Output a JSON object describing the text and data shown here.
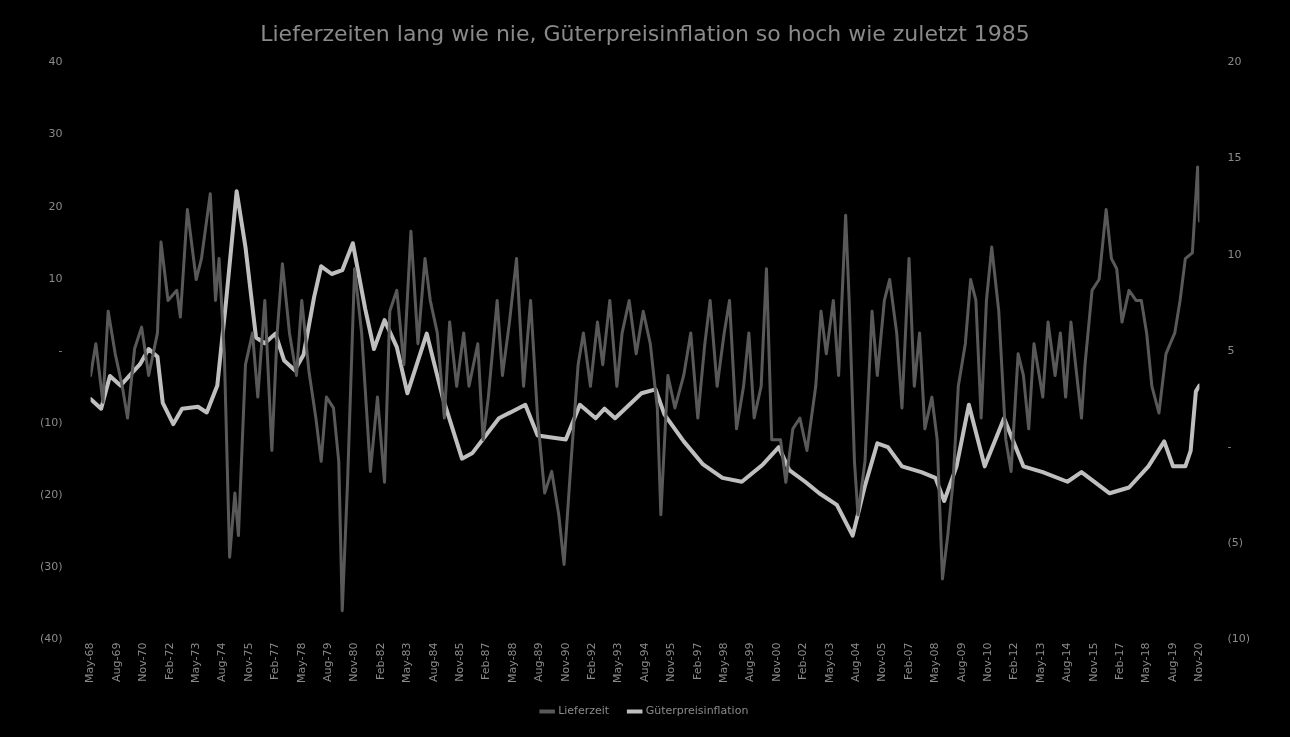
{
  "chart_data": {
    "type": "line",
    "title": "Lieferzeiten lang wie nie, Güterpreisinflation so hoch wie zuletzt 1985",
    "legend": "bottom",
    "marker": "none",
    "grid": false,
    "xlim": [
      "1968-05",
      "2020-11"
    ],
    "xticks": [
      {
        "value": "1968-05",
        "label": "May-68"
      },
      {
        "value": "1969-08",
        "label": "Aug-69"
      },
      {
        "value": "1970-11",
        "label": "Nov-70"
      },
      {
        "value": "1972-02",
        "label": "Feb-72"
      },
      {
        "value": "1973-05",
        "label": "May-73"
      },
      {
        "value": "1974-08",
        "label": "Aug-74"
      },
      {
        "value": "1975-11",
        "label": "Nov-75"
      },
      {
        "value": "1977-02",
        "label": "Feb-77"
      },
      {
        "value": "1978-05",
        "label": "May-78"
      },
      {
        "value": "1979-08",
        "label": "Aug-79"
      },
      {
        "value": "1980-11",
        "label": "Nov-80"
      },
      {
        "value": "1982-02",
        "label": "Feb-82"
      },
      {
        "value": "1983-05",
        "label": "May-83"
      },
      {
        "value": "1984-08",
        "label": "Aug-84"
      },
      {
        "value": "1985-11",
        "label": "Nov-85"
      },
      {
        "value": "1987-02",
        "label": "Feb-87"
      },
      {
        "value": "1988-05",
        "label": "May-88"
      },
      {
        "value": "1989-08",
        "label": "Aug-89"
      },
      {
        "value": "1990-11",
        "label": "Nov-90"
      },
      {
        "value": "1992-02",
        "label": "Feb-92"
      },
      {
        "value": "1993-05",
        "label": "May-93"
      },
      {
        "value": "1994-08",
        "label": "Aug-94"
      },
      {
        "value": "1995-11",
        "label": "Nov-95"
      },
      {
        "value": "1997-02",
        "label": "Feb-97"
      },
      {
        "value": "1998-05",
        "label": "May-98"
      },
      {
        "value": "1999-08",
        "label": "Aug-99"
      },
      {
        "value": "2000-11",
        "label": "Nov-00"
      },
      {
        "value": "2002-02",
        "label": "Feb-02"
      },
      {
        "value": "2003-05",
        "label": "May-03"
      },
      {
        "value": "2004-08",
        "label": "Aug-04"
      },
      {
        "value": "2005-11",
        "label": "Nov-05"
      },
      {
        "value": "2007-02",
        "label": "Feb-07"
      },
      {
        "value": "2008-05",
        "label": "May-08"
      },
      {
        "value": "2009-08",
        "label": "Aug-09"
      },
      {
        "value": "2010-11",
        "label": "Nov-10"
      },
      {
        "value": "2012-02",
        "label": "Feb-12"
      },
      {
        "value": "2013-05",
        "label": "May-13"
      },
      {
        "value": "2014-08",
        "label": "Aug-14"
      },
      {
        "value": "2015-11",
        "label": "Nov-15"
      },
      {
        "value": "2017-02",
        "label": "Feb-17"
      },
      {
        "value": "2018-05",
        "label": "May-18"
      },
      {
        "value": "2019-08",
        "label": "Aug-19"
      },
      {
        "value": "2020-11",
        "label": "Nov-20"
      }
    ],
    "ylim": [
      -40,
      40
    ],
    "yticks": [
      {
        "value": -40,
        "label": "(40)"
      },
      {
        "value": -30,
        "label": "(30)"
      },
      {
        "value": -20,
        "label": "(20)"
      },
      {
        "value": -10,
        "label": "(10)"
      },
      {
        "value": 0,
        "label": "-"
      },
      10,
      20,
      30,
      40
    ],
    "y2lim": [
      -10,
      20
    ],
    "y2ticks": [
      {
        "value": -10,
        "label": "(10)"
      },
      {
        "value": -5,
        "label": "(5)"
      },
      {
        "value": 0,
        "label": "-"
      },
      5,
      10,
      15,
      20
    ],
    "series": [
      {
        "name": "Lieferzeit",
        "color": "#595959",
        "axis": "y",
        "x": [
          "1968-05",
          "1968-08",
          "1968-12",
          "1969-03",
          "1969-07",
          "1969-11",
          "1970-02",
          "1970-06",
          "1970-10",
          "1971-02",
          "1971-07",
          "1971-09",
          "1972-01",
          "1972-06",
          "1972-08",
          "1972-12",
          "1973-05",
          "1973-08",
          "1974-01",
          "1974-04",
          "1974-06",
          "1974-09",
          "1974-12",
          "1975-03",
          "1975-05",
          "1975-09",
          "1976-01",
          "1976-04",
          "1976-08",
          "1976-12",
          "1977-03",
          "1977-06",
          "1977-10",
          "1978-02",
          "1978-05",
          "1978-09",
          "1979-01",
          "1979-04",
          "1979-07",
          "1979-11",
          "1980-02",
          "1980-04",
          "1980-07",
          "1980-11",
          "1981-03",
          "1981-08",
          "1981-12",
          "1982-04",
          "1982-07",
          "1982-11",
          "1983-03",
          "1983-07",
          "1983-11",
          "1984-03",
          "1984-06",
          "1984-10",
          "1985-02",
          "1985-05",
          "1985-09",
          "1986-01",
          "1986-04",
          "1986-09",
          "1986-12",
          "1987-03",
          "1987-08",
          "1987-11",
          "1988-03",
          "1988-07",
          "1988-11",
          "1989-03",
          "1989-07",
          "1989-11",
          "1990-03",
          "1990-07",
          "1990-10",
          "1991-02",
          "1991-06",
          "1991-09",
          "1992-01",
          "1992-05",
          "1992-08",
          "1992-12",
          "1993-04",
          "1993-07",
          "1993-11",
          "1994-03",
          "1994-07",
          "1994-11",
          "1995-03",
          "1995-05",
          "1995-09",
          "1996-01",
          "1996-06",
          "1996-10",
          "1997-02",
          "1997-06",
          "1997-09",
          "1998-01",
          "1998-05",
          "1998-08",
          "1998-12",
          "1999-04",
          "1999-07",
          "1999-10",
          "2000-02",
          "2000-05",
          "2000-08",
          "2001-01",
          "2001-04",
          "2001-08",
          "2001-12",
          "2002-04",
          "2002-09",
          "2002-12",
          "2003-03",
          "2003-07",
          "2003-10",
          "2004-02",
          "2004-04",
          "2004-07",
          "2004-09",
          "2005-01",
          "2005-05",
          "2005-08",
          "2005-12",
          "2006-03",
          "2006-07",
          "2006-10",
          "2007-02",
          "2007-05",
          "2007-08",
          "2007-11",
          "2008-03",
          "2008-06",
          "2008-09",
          "2008-12",
          "2009-03",
          "2009-06",
          "2009-10",
          "2010-01",
          "2010-04",
          "2010-07",
          "2010-10",
          "2011-01",
          "2011-05",
          "2011-09",
          "2011-12",
          "2012-04",
          "2012-07",
          "2012-10",
          "2013-01",
          "2013-06",
          "2013-09",
          "2014-01",
          "2014-04",
          "2014-07",
          "2014-10",
          "2015-02",
          "2015-04",
          "2015-06",
          "2015-10",
          "2016-02",
          "2016-06",
          "2016-09",
          "2016-12",
          "2017-03",
          "2017-07",
          "2017-11",
          "2018-02",
          "2018-05",
          "2018-08",
          "2018-12",
          "2019-04",
          "2019-09",
          "2019-12",
          "2020-03",
          "2020-07",
          "2020-10",
          "2020-11"
        ],
        "values": [
          -3.4,
          1.0,
          -7.1,
          5.5,
          -0.4,
          -4.9,
          -9.3,
          0.3,
          3.3,
          -3.4,
          2.5,
          15.1,
          7.0,
          8.4,
          4.7,
          19.6,
          9.9,
          12.8,
          21.8,
          7.0,
          12.8,
          -0.4,
          -28.6,
          -19.7,
          -25.6,
          -1.9,
          2.5,
          -6.4,
          7.0,
          -13.8,
          2.5,
          12.1,
          2.5,
          -3.4,
          7.0,
          -2.7,
          -9.3,
          -15.3,
          -6.4,
          -7.9,
          -15.3,
          -36.0,
          -18.2,
          11.4,
          2.5,
          -16.7,
          -6.4,
          -18.2,
          5.5,
          8.4,
          -1.9,
          16.6,
          1.0,
          12.8,
          7.0,
          2.5,
          -9.3,
          4.0,
          -4.9,
          2.5,
          -4.9,
          1.0,
          -12.3,
          -6.4,
          7.0,
          -3.4,
          4.0,
          12.8,
          -4.9,
          7.0,
          -9.3,
          -19.7,
          -16.7,
          -22.7,
          -29.6,
          -15.3,
          -1.9,
          2.5,
          -4.9,
          4.0,
          -1.9,
          7.0,
          -4.9,
          2.5,
          7.0,
          -0.4,
          5.5,
          1.0,
          -7.9,
          -22.7,
          -3.4,
          -7.9,
          -3.4,
          2.5,
          -9.3,
          1.0,
          7.0,
          -4.9,
          2.5,
          7.0,
          -10.8,
          -4.9,
          2.5,
          -9.3,
          -4.9,
          11.4,
          -12.3,
          -12.3,
          -18.2,
          -10.8,
          -9.3,
          -13.8,
          -4.9,
          5.5,
          -0.4,
          7.0,
          -3.4,
          18.8,
          7.0,
          -15.3,
          -22.7,
          -15.3,
          5.5,
          -3.4,
          7.0,
          9.9,
          2.5,
          -7.9,
          12.8,
          -4.9,
          2.5,
          -10.8,
          -6.4,
          -12.3,
          -31.6,
          -25.6,
          -18.2,
          -4.9,
          1.0,
          9.9,
          7.0,
          -9.3,
          7.0,
          14.4,
          5.5,
          -12.3,
          -16.7,
          -0.4,
          -3.4,
          -10.8,
          1.0,
          -6.4,
          4.0,
          -3.4,
          2.5,
          -6.4,
          4.0,
          -4.9,
          -9.3,
          -1.9,
          8.4,
          9.9,
          19.6,
          12.8,
          11.4,
          4.0,
          8.4,
          7.0,
          7.0,
          2.5,
          -4.9,
          -8.6,
          -0.4,
          2.5,
          7.0,
          12.8,
          13.6,
          25.5,
          18.0
        ]
      },
      {
        "name": "Güterpreisinflation",
        "color": "#bfbfbf",
        "axis": "y2",
        "x": [
          "1968-05",
          "1968-11",
          "1969-04",
          "1969-10",
          "1970-03",
          "1970-09",
          "1971-02",
          "1971-07",
          "1971-10",
          "1972-04",
          "1972-09",
          "1973-06",
          "1973-11",
          "1974-05",
          "1974-10",
          "1975-04",
          "1975-09",
          "1976-03",
          "1976-08",
          "1977-02",
          "1977-07",
          "1978-01",
          "1978-06",
          "1978-12",
          "1979-04",
          "1979-10",
          "1980-04",
          "1980-10",
          "1981-05",
          "1981-10",
          "1982-04",
          "1982-11",
          "1983-05",
          "1984-04",
          "1985-01",
          "1985-12",
          "1986-06",
          "1987-09",
          "1988-12",
          "1989-07",
          "1990-11",
          "1991-07",
          "1992-04",
          "1992-09",
          "1993-03",
          "1994-06",
          "1995-02",
          "1995-07",
          "1996-06",
          "1997-05",
          "1998-04",
          "1999-03",
          "2000-03",
          "2000-12",
          "2001-06",
          "2002-03",
          "2002-11",
          "2003-09",
          "2004-06",
          "2005-01",
          "2005-08",
          "2006-02",
          "2006-10",
          "2007-09",
          "2008-05",
          "2008-10",
          "2009-05",
          "2009-12",
          "2010-09",
          "2011-08",
          "2012-07",
          "2013-06",
          "2014-08",
          "2015-04",
          "2016-08",
          "2017-07",
          "2018-06",
          "2019-03",
          "2019-08",
          "2020-03",
          "2020-06",
          "2020-09",
          "2020-11"
        ],
        "values": [
          2.5,
          2.0,
          3.7,
          3.2,
          3.7,
          4.3,
          5.1,
          4.7,
          2.3,
          1.2,
          2.0,
          2.1,
          1.8,
          3.2,
          7.6,
          13.3,
          10.4,
          5.7,
          5.4,
          5.9,
          4.5,
          4.0,
          4.8,
          7.8,
          9.4,
          9.0,
          9.2,
          10.6,
          7.2,
          5.1,
          6.6,
          5.2,
          2.8,
          5.9,
          2.6,
          -0.6,
          -0.3,
          1.5,
          2.2,
          0.6,
          0.4,
          2.2,
          1.5,
          2.0,
          1.5,
          2.8,
          3.0,
          1.7,
          0.3,
          -0.9,
          -1.6,
          -1.8,
          -0.9,
          0.0,
          -1.2,
          -1.8,
          -2.4,
          -3.0,
          -4.6,
          -2.0,
          0.2,
          0.0,
          -1.0,
          -1.3,
          -1.6,
          -2.8,
          -1.0,
          2.2,
          -1.0,
          1.5,
          -1.0,
          -1.3,
          -1.8,
          -1.3,
          -2.4,
          -2.1,
          -1.0,
          0.3,
          -1.0,
          -1.0,
          -0.2,
          2.9,
          3.2
        ]
      }
    ]
  }
}
